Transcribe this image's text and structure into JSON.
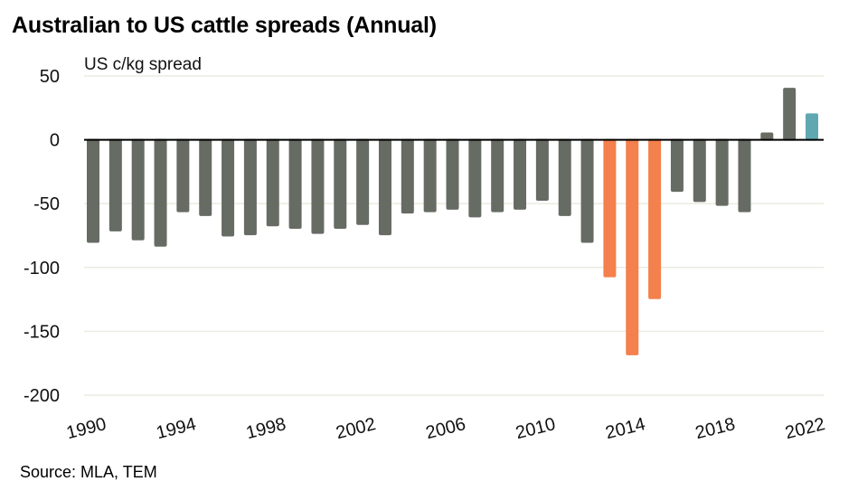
{
  "chart_data": {
    "type": "bar",
    "title": "Australian to US cattle spreads (Annual)",
    "ylabel": "US c/kg spread",
    "xlabel": "",
    "source": "Source: MLA, TEM",
    "ylim": [
      -200,
      50
    ],
    "yticks": [
      50,
      0,
      -50,
      -100,
      -150,
      -200
    ],
    "xtick_labels": [
      "1990",
      "1994",
      "1998",
      "2002",
      "2006",
      "2010",
      "2014",
      "2018",
      "2022"
    ],
    "grid": true,
    "legend": "none",
    "colors": {
      "default": "#666b64",
      "highlight": "#f4804d",
      "latest": "#5fa8b2",
      "grid": "#ebebe0",
      "zero_line": "#000000"
    },
    "categories": [
      "1990",
      "1991",
      "1992",
      "1993",
      "1994",
      "1995",
      "1996",
      "1997",
      "1998",
      "1999",
      "2000",
      "2001",
      "2002",
      "2003",
      "2004",
      "2005",
      "2006",
      "2007",
      "2008",
      "2009",
      "2010",
      "2011",
      "2012",
      "2013",
      "2014",
      "2015",
      "2016",
      "2017",
      "2018",
      "2019",
      "2020",
      "2021",
      "2022"
    ],
    "values": [
      -80,
      -71,
      -78,
      -83,
      -56,
      -59,
      -75,
      -74,
      -67,
      -69,
      -73,
      -69,
      -66,
      -74,
      -57,
      -56,
      -54,
      -60,
      -56,
      -54,
      -47,
      -59,
      -80,
      -107,
      -168,
      -124,
      -40,
      -48,
      -51,
      -56,
      5,
      40,
      20
    ],
    "bar_color_keys": [
      "default",
      "default",
      "default",
      "default",
      "default",
      "default",
      "default",
      "default",
      "default",
      "default",
      "default",
      "default",
      "default",
      "default",
      "default",
      "default",
      "default",
      "default",
      "default",
      "default",
      "default",
      "default",
      "default",
      "highlight",
      "highlight",
      "highlight",
      "default",
      "default",
      "default",
      "default",
      "default",
      "default",
      "latest"
    ]
  }
}
